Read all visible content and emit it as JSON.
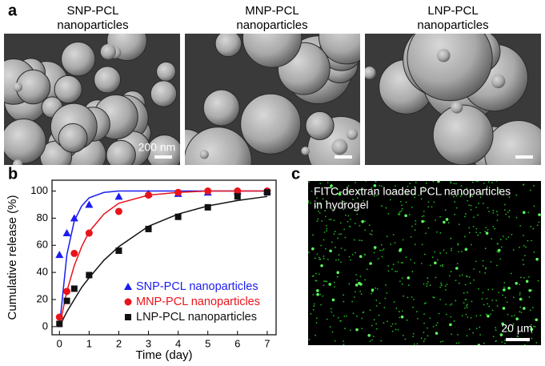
{
  "panel_labels": [
    "a",
    "b",
    "c"
  ],
  "sem": {
    "titles": [
      [
        "SNP-PCL",
        "nanoparticles"
      ],
      [
        "MNP-PCL",
        "nanoparticles"
      ],
      [
        "LNP-PCL",
        "nanoparticles"
      ]
    ],
    "scale_label": "200 nm"
  },
  "fluorescence": {
    "caption": [
      "FITC-dextran loaded PCL nanoparticles",
      "in hydrogel"
    ],
    "scale_label": "20 µm"
  },
  "chart_data": {
    "type": "scatter",
    "x_label": "Time (day)",
    "y_label": "Cumulative release (%)",
    "xlim": [
      -0.25,
      7.3
    ],
    "ylim": [
      -6,
      108
    ],
    "xticks": [
      0,
      1,
      2,
      3,
      4,
      5,
      6,
      7
    ],
    "yticks": [
      0,
      20,
      40,
      60,
      80,
      100
    ],
    "legend": "lower right",
    "series": [
      {
        "name": "SNP-PCL nanoparticles",
        "color": "#1c1cf0",
        "marker": "triangle",
        "x": [
          0,
          0.25,
          0.5,
          1,
          2,
          3,
          4,
          5,
          6,
          7
        ],
        "values": [
          53,
          69,
          80,
          90,
          96,
          98,
          98,
          99,
          100,
          100
        ],
        "fit": {
          "x": [
            0,
            0.25,
            0.5,
            0.75,
            1,
            1.5,
            2,
            3,
            4,
            5,
            6,
            7
          ],
          "values": [
            0,
            53,
            78,
            89,
            95,
            99,
            100,
            100,
            100,
            100,
            100,
            100
          ]
        }
      },
      {
        "name": "MNP-PCL nanoparticles",
        "color": "#e8141c",
        "marker": "circle",
        "x": [
          0,
          0.25,
          0.5,
          1,
          2,
          3,
          4,
          5,
          6,
          7
        ],
        "values": [
          7,
          26,
          54,
          69,
          85,
          97,
          99,
          100,
          100,
          100
        ],
        "fit": {
          "x": [
            0,
            0.25,
            0.5,
            0.75,
            1,
            1.5,
            2,
            3,
            4,
            5,
            6,
            7
          ],
          "values": [
            0,
            26,
            45,
            59,
            70,
            83,
            91,
            97,
            99,
            100,
            100,
            100
          ]
        }
      },
      {
        "name": "LNP-PCL nanoparticles",
        "color": "#111111",
        "marker": "square",
        "x": [
          0,
          0.25,
          0.5,
          1,
          2,
          3,
          4,
          5,
          6,
          7
        ],
        "values": [
          2,
          19,
          28,
          38,
          56,
          72,
          81,
          88,
          96,
          99
        ],
        "fit": {
          "x": [
            0,
            0.25,
            0.5,
            0.75,
            1,
            1.5,
            2,
            3,
            4,
            5,
            6,
            7
          ],
          "values": [
            0,
            11,
            20,
            29,
            36,
            49,
            59,
            74,
            83,
            89,
            93,
            96
          ]
        }
      }
    ]
  }
}
